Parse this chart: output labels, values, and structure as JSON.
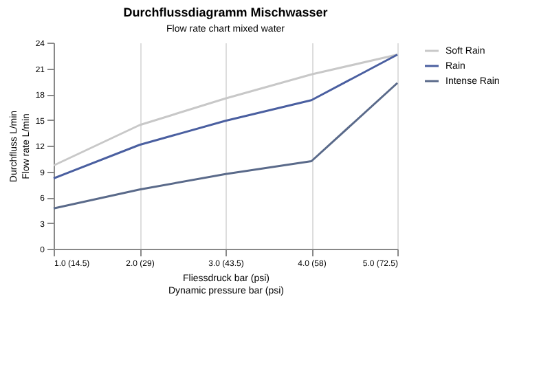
{
  "chart_data": {
    "type": "line",
    "title": "Durchflussdiagramm Mischwasser",
    "subtitle": "Flow rate chart mixed water",
    "xlabel": "Fliessdruck bar (psi)\nDynamic pressure bar (psi)",
    "ylabel": "Durchfluss L/min\nFlow rate L/min",
    "categories": [
      "1.0 (14.5)",
      "2.0 (29)",
      "3.0 (43.5)",
      "4.0 (58)",
      "5.0 (72.5)"
    ],
    "series": [
      {
        "name": "Soft Rain",
        "color": "#c8c8c8",
        "values": [
          9.7,
          14.4,
          17.5,
          20.3,
          22.6
        ]
      },
      {
        "name": "Rain",
        "color": "#4a5fa0",
        "values": [
          8.2,
          12.1,
          14.9,
          17.3,
          22.6
        ]
      },
      {
        "name": "Intense Rain",
        "color": "#5a6a8a",
        "values": [
          4.7,
          6.9,
          8.7,
          10.2,
          19.3
        ]
      }
    ],
    "ylim": [
      0,
      24
    ],
    "yticks": [
      0,
      3,
      6,
      9,
      12,
      15,
      18,
      21,
      24
    ],
    "grid": "x",
    "legend": "right",
    "marker": "none",
    "line_style": "solid"
  }
}
